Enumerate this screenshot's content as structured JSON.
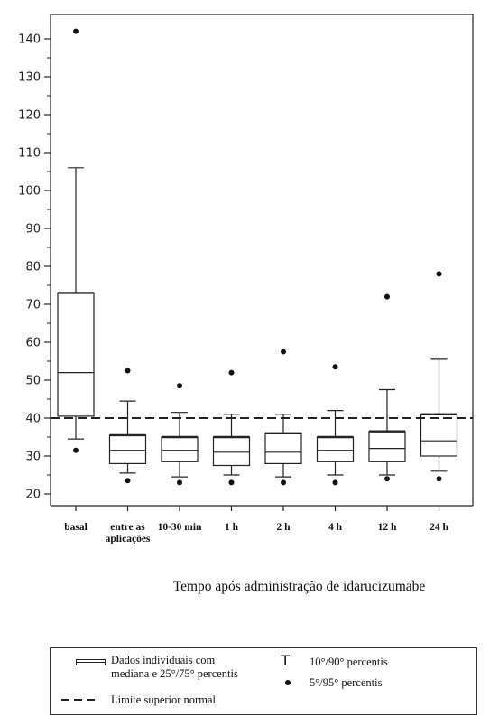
{
  "chart_data": {
    "type": "box",
    "title": "",
    "xlabel": "Tempo após administração de idarucizumabe",
    "ylabel": "",
    "ylim": [
      18,
      148
    ],
    "yticks": [
      20,
      30,
      40,
      50,
      60,
      70,
      80,
      90,
      100,
      110,
      120,
      130,
      140
    ],
    "reference_line": {
      "value": 40,
      "style": "dashed",
      "label": "Limite superior normal"
    },
    "categories": [
      {
        "label": [
          "basal"
        ],
        "p5": 31.5,
        "p10": 34.5,
        "q1": 40.5,
        "median": 52,
        "q3": 73,
        "p90": 106,
        "p95": 142
      },
      {
        "label": [
          "entre as",
          "aplicações"
        ],
        "p5": 23.5,
        "p10": 25.5,
        "q1": 28,
        "median": 31.5,
        "q3": 35.5,
        "p90": 44.5,
        "p95": 52.5
      },
      {
        "label": [
          "10-30 min"
        ],
        "p5": 23,
        "p10": 24.5,
        "q1": 28.5,
        "median": 31.5,
        "q3": 35,
        "p90": 41.5,
        "p95": 48.5
      },
      {
        "label": [
          "1 h"
        ],
        "p5": 23,
        "p10": 25,
        "q1": 27.5,
        "median": 31,
        "q3": 35,
        "p90": 41,
        "p95": 52
      },
      {
        "label": [
          "2 h"
        ],
        "p5": 23,
        "p10": 24.5,
        "q1": 28,
        "median": 31,
        "q3": 36,
        "p90": 41,
        "p95": 57.5
      },
      {
        "label": [
          "4 h"
        ],
        "p5": 23,
        "p10": 25,
        "q1": 28.5,
        "median": 31.5,
        "q3": 35,
        "p90": 42,
        "p95": 53.5
      },
      {
        "label": [
          "12 h"
        ],
        "p5": 24,
        "p10": 25,
        "q1": 28.5,
        "median": 32,
        "q3": 36.5,
        "p90": 47.5,
        "p95": 72
      },
      {
        "label": [
          "24 h"
        ],
        "p5": 24,
        "p10": 26,
        "q1": 30,
        "median": 34,
        "q3": 41,
        "p90": 55.5,
        "p95": 78
      }
    ]
  },
  "legend": {
    "box_label": "Dados individuais com\nmediana e 25°/75° percentis",
    "whisker_label": "10°/90° percentis",
    "dot_label": "5°/95° percentis",
    "line_label": "Limite superior normal"
  }
}
